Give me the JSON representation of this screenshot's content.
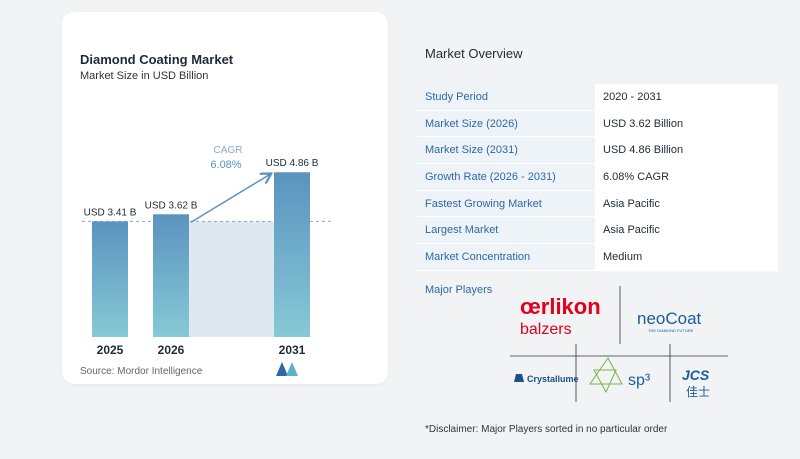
{
  "chart_data": {
    "type": "bar",
    "title": "Diamond Coating Market",
    "subtitle": "Market Size in USD Billion",
    "categories": [
      "2025",
      "2026",
      "2031"
    ],
    "values": [
      3.41,
      3.62,
      4.86
    ],
    "value_labels": [
      "USD 3.41 B",
      "USD 3.62 B",
      "USD 4.86 B"
    ],
    "ylim": [
      0,
      5.5
    ],
    "cagr_label": "CAGR",
    "cagr_value": "6.08%",
    "bar_color": "#5b93bf",
    "bar_color_bottom": "#87c9d6",
    "shade_color": "#dde8f1"
  },
  "source": "Source:  Mordor Intelligence",
  "overview": {
    "title": "Market Overview",
    "rows": [
      {
        "key": "Study Period",
        "value": "2020 - 2031"
      },
      {
        "key": "Market Size (2026)",
        "value": "USD 3.62 Billion"
      },
      {
        "key": "Market Size (2031)",
        "value": "USD 4.86 Billion"
      },
      {
        "key": "Growth Rate (2026 - 2031)",
        "value": "6.08% CAGR"
      },
      {
        "key": "Fastest Growing Market",
        "value": "Asia Pacific"
      },
      {
        "key": "Largest Market",
        "value": "Asia Pacific"
      },
      {
        "key": "Market Concentration",
        "value": "Medium"
      }
    ]
  },
  "players": {
    "label": "Major Players",
    "oerlikon_1": "œrlikon",
    "oerlikon_2": "balzers",
    "neocoat": "neoCoat",
    "neocoat_tag": "THE DIAMOND FUTURE",
    "crystallume": "Crystallume",
    "sp3": "sp³",
    "jcs_1": "JCS",
    "jcs_2": "佳士"
  },
  "disclaimer": "*Disclaimer: Major Players sorted in no particular order"
}
